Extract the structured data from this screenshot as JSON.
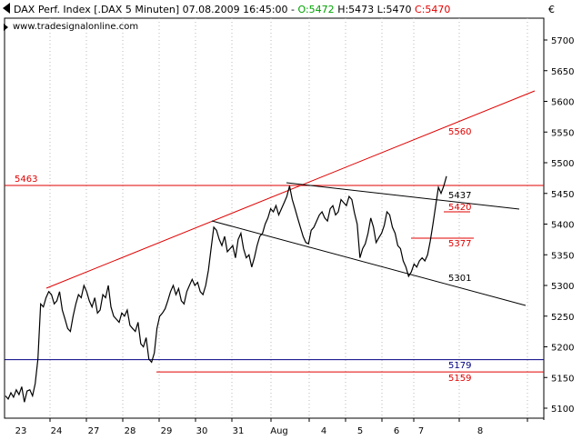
{
  "header": {
    "title_prefix": "DAX Perf. Index [.DAX  5 Minuten] 07.08.2009 16:45:00 - ",
    "open": "O:5472",
    "high": "H:5473",
    "low": "L:5470",
    "close": "C:5470",
    "source": "www.tradesignalonline.com"
  },
  "currency_symbol": "€",
  "colors": {
    "price": "#000000",
    "resistance": "#e00000",
    "support": "#000080",
    "open_text": "#00a000",
    "close_text": "#e00000",
    "grid": "#b8b8b8"
  },
  "chart_data": {
    "type": "line",
    "y_ticks": [
      5100,
      5150,
      5200,
      5250,
      5300,
      5350,
      5400,
      5450,
      5500,
      5550,
      5600,
      5650,
      5700
    ],
    "x_tick_labels": [
      "23",
      "24",
      "27",
      "28",
      "29",
      "30",
      "31",
      "Aug",
      "4",
      "5",
      "6",
      "7",
      "8"
    ],
    "ylim": [
      5085,
      5730
    ],
    "series": [
      {
        "values": [
          5120,
          5115,
          5125,
          5118,
          5130,
          5122,
          5135,
          5110,
          5128,
          5130,
          5120,
          5140,
          5180,
          5270,
          5265,
          5280,
          5290,
          5285,
          5270,
          5275,
          5290,
          5260,
          5245,
          5230,
          5225,
          5250,
          5270,
          5285,
          5280,
          5300,
          5290,
          5275,
          5265,
          5280,
          5255,
          5260,
          5285,
          5280,
          5300,
          5265,
          5250,
          5245,
          5240,
          5255,
          5250,
          5260,
          5235,
          5230,
          5225,
          5240,
          5205,
          5200,
          5215,
          5180,
          5175,
          5190,
          5230,
          5250,
          5255,
          5262,
          5275,
          5290,
          5300,
          5285,
          5295,
          5275,
          5270,
          5290,
          5300,
          5310,
          5300,
          5305,
          5290,
          5285,
          5300,
          5325,
          5360,
          5395,
          5390,
          5375,
          5365,
          5380,
          5355,
          5360,
          5365,
          5345,
          5375,
          5385,
          5360,
          5345,
          5350,
          5330,
          5345,
          5365,
          5380,
          5385,
          5400,
          5410,
          5425,
          5420,
          5430,
          5415,
          5425,
          5435,
          5445,
          5462,
          5440,
          5425,
          5410,
          5395,
          5380,
          5370,
          5368,
          5390,
          5395,
          5405,
          5415,
          5420,
          5410,
          5405,
          5425,
          5430,
          5415,
          5420,
          5440,
          5435,
          5430,
          5445,
          5440,
          5418,
          5400,
          5345,
          5360,
          5368,
          5385,
          5410,
          5395,
          5370,
          5378,
          5385,
          5398,
          5420,
          5415,
          5395,
          5385,
          5365,
          5360,
          5340,
          5330,
          5315,
          5322,
          5335,
          5330,
          5340,
          5345,
          5340,
          5350,
          5372,
          5400,
          5430,
          5460,
          5450,
          5462,
          5478
        ]
      }
    ],
    "levels": [
      {
        "label": "5463",
        "value": 5463
      },
      {
        "label": "5560",
        "value": 5560
      },
      {
        "label": "5437",
        "value": 5437
      },
      {
        "label": "5420",
        "value": 5420
      },
      {
        "label": "5377",
        "value": 5377
      },
      {
        "label": "5301",
        "value": 5301
      },
      {
        "label": "5179",
        "value": 5179
      },
      {
        "label": "5159",
        "value": 5159
      }
    ]
  }
}
